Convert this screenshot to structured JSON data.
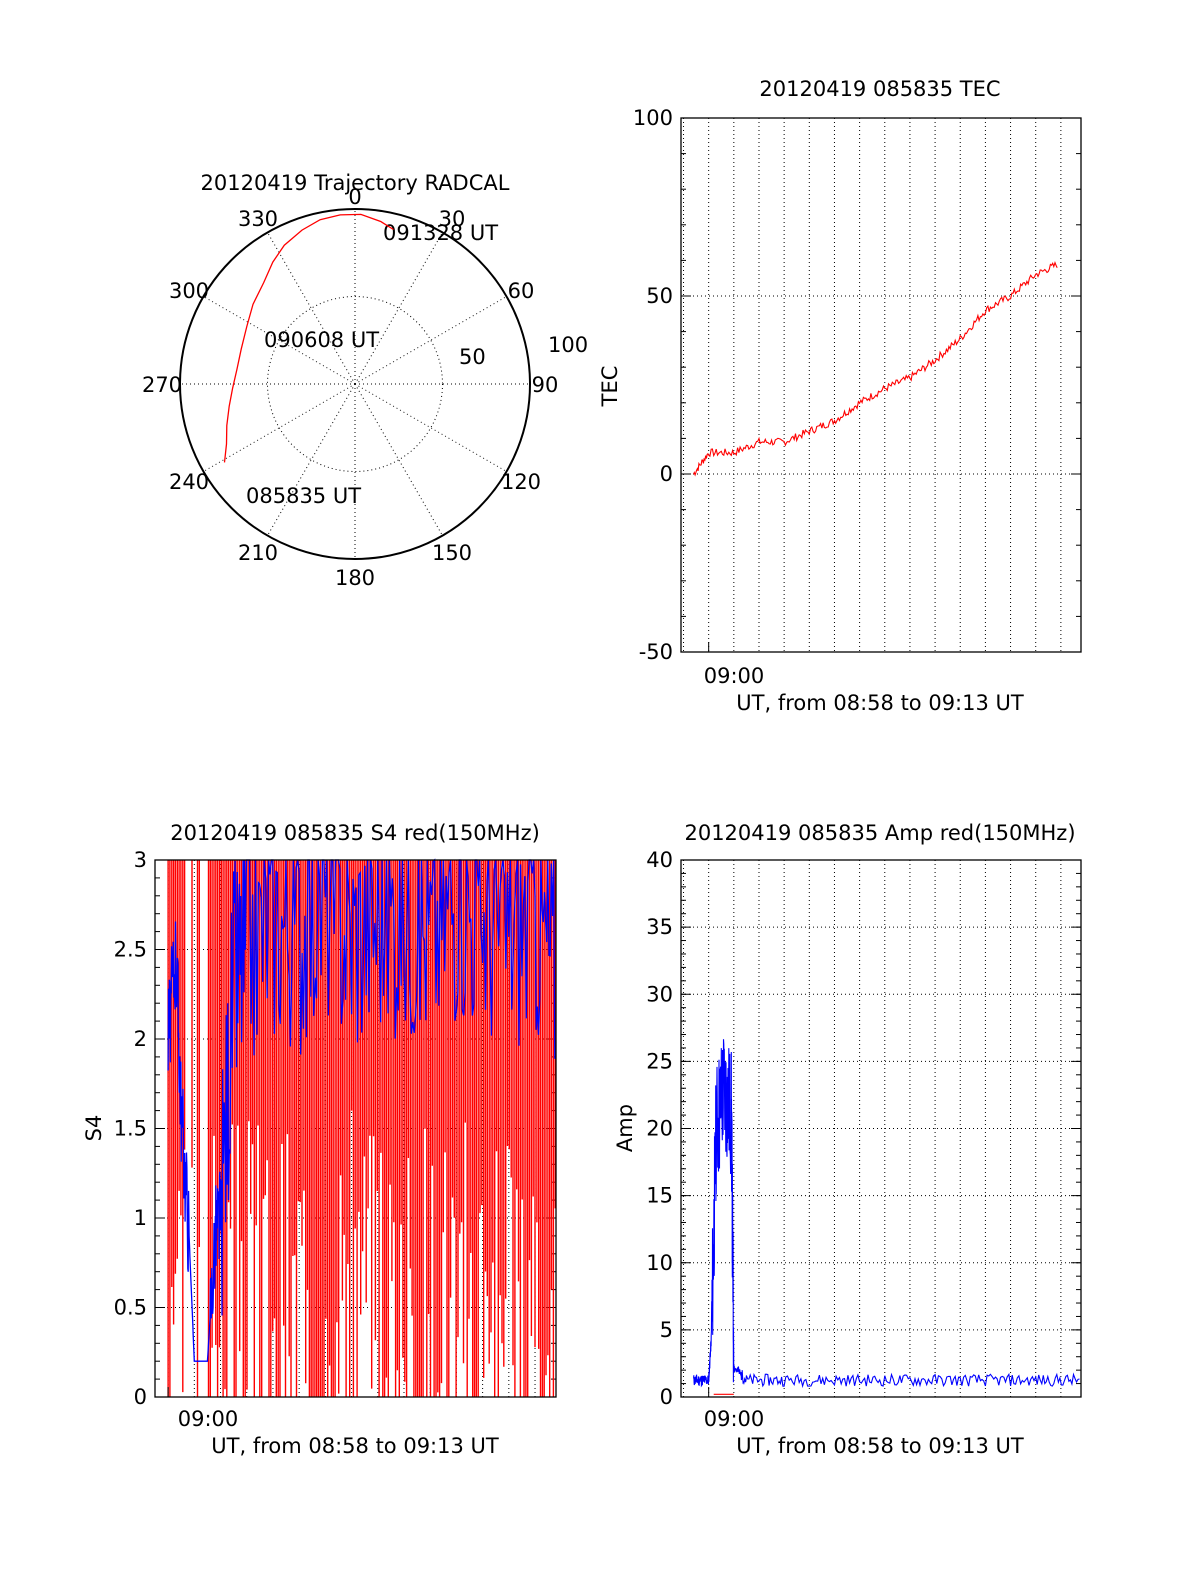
{
  "colors": {
    "red": "#ff0000",
    "blue": "#0000ff",
    "axis": "#000000"
  },
  "chart_data": [
    {
      "type": "polar",
      "title": "20120419 Trajectory RADCAL",
      "angle_labels": [
        "0",
        "30",
        "60",
        "90",
        "120",
        "150",
        "180",
        "210",
        "240",
        "270",
        "300",
        "330"
      ],
      "radius_labels": [
        "50",
        "100"
      ],
      "rlim": [
        0,
        100
      ],
      "trajectory": {
        "color": "red",
        "start_label": "085835 UT",
        "mid_label": "090608 UT",
        "end_label": "091328 UT",
        "points": [
          {
            "az": 239,
            "r": 87
          },
          {
            "az": 245,
            "r": 81
          },
          {
            "az": 252,
            "r": 77
          },
          {
            "az": 260,
            "r": 73
          },
          {
            "az": 268,
            "r": 70
          },
          {
            "az": 277,
            "r": 68
          },
          {
            "az": 287,
            "r": 68
          },
          {
            "az": 298,
            "r": 70
          },
          {
            "az": 308,
            "r": 74
          },
          {
            "az": 318,
            "r": 78
          },
          {
            "az": 326,
            "r": 84
          },
          {
            "az": 333,
            "r": 89
          },
          {
            "az": 341,
            "r": 93
          },
          {
            "az": 348,
            "r": 96
          },
          {
            "az": 355,
            "r": 97
          },
          {
            "az": 2,
            "r": 97
          },
          {
            "az": 9,
            "r": 94
          },
          {
            "az": 14,
            "r": 91
          }
        ]
      }
    },
    {
      "type": "line",
      "title": "20120419 085835 TEC",
      "xlabel": "UT, from 08:58 to 09:13 UT",
      "ylabel": "TEC",
      "xlim_min": [
        -1.1,
        14.8
      ],
      "x_tick_label": "09:00",
      "ylim": [
        -50,
        100
      ],
      "yticks": [
        "-50",
        "0",
        "50",
        "100"
      ],
      "series": [
        {
          "color": "red",
          "x": [
            -0.6,
            0.0,
            1.0,
            2.0,
            3.0,
            4.0,
            5.0,
            6.0,
            7.0,
            8.0,
            9.0,
            10.0,
            11.0,
            12.0,
            13.0,
            13.9
          ],
          "y": [
            0,
            6,
            6,
            9,
            9,
            12,
            15,
            20,
            24,
            27,
            32,
            38,
            46,
            50,
            56,
            59
          ]
        }
      ]
    },
    {
      "type": "line",
      "title": "20120419 085835 S4 red(150MHz)",
      "xlabel": "UT, from 08:58 to 09:13 UT",
      "ylabel": "S4",
      "xlim_min": [
        -0.5,
        14.8
      ],
      "x_tick_label": "09:00",
      "ylim": [
        0,
        3
      ],
      "yticks": [
        "0",
        "0.5",
        "1",
        "1.5",
        "2",
        "2.5",
        "3"
      ],
      "series": [
        {
          "color": "blue",
          "x": [
            0.0,
            0.3,
            0.5,
            0.8,
            1.0,
            1.2,
            1.5,
            1.8,
            2.0,
            2.5,
            3.0,
            4.0,
            5.0,
            6.0,
            7.0,
            8.0,
            9.0,
            10.0,
            11.0,
            12.0,
            13.0,
            14.0,
            14.8
          ],
          "y": [
            2.0,
            2.5,
            1.6,
            0.9,
            0.2,
            0.2,
            0.2,
            0.9,
            1.0,
            2.3,
            2.5,
            2.7,
            2.6,
            2.8,
            2.6,
            2.7,
            2.7,
            2.6,
            2.8,
            2.7,
            2.6,
            2.7,
            2.4
          ]
        },
        {
          "color": "red",
          "note_values": "dense vertical spikes between 0 and 3 across 09:00–09:13"
        }
      ]
    },
    {
      "type": "line",
      "title": "20120419 085835 Amp red(150MHz)",
      "xlabel": "UT, from 08:58 to 09:13 UT",
      "ylabel": "Amp",
      "xlim_min": [
        -1.1,
        14.8
      ],
      "x_tick_label": "09:00",
      "ylim": [
        0,
        40
      ],
      "yticks": [
        "0",
        "5",
        "10",
        "15",
        "20",
        "25",
        "30",
        "35",
        "40"
      ],
      "series": [
        {
          "color": "blue",
          "x": [
            -0.6,
            -0.3,
            0.0,
            0.1,
            0.3,
            0.6,
            0.9,
            1.0,
            1.5,
            3.0,
            5.0,
            7.0,
            9.0,
            11.0,
            13.0,
            14.8
          ],
          "y": [
            1.0,
            1.0,
            1.0,
            4.0,
            20.0,
            23.0,
            21.0,
            2.0,
            1.0,
            1.0,
            1.0,
            1.0,
            1.0,
            1.0,
            1.0,
            1.0
          ]
        },
        {
          "color": "red",
          "x": [
            0.2,
            1.0
          ],
          "y": [
            0.2,
            0.2
          ]
        }
      ]
    }
  ]
}
